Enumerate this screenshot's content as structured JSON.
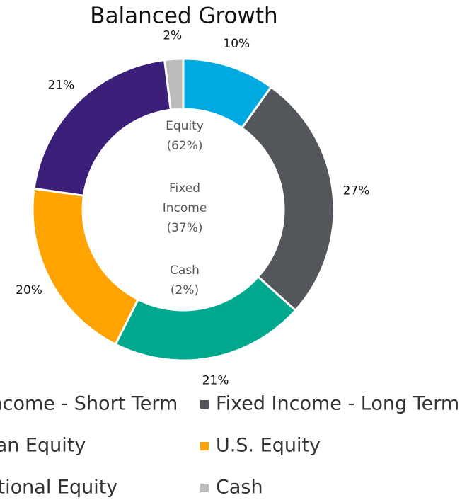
{
  "chart_data": {
    "type": "donut",
    "title": "Balanced Growth",
    "categories": [
      "Fixed Income - Short Term",
      "Fixed Income - Long Term",
      "Canadian Equity",
      "U.S. Equity",
      "International Equity",
      "Cash"
    ],
    "values": [
      10,
      27,
      21,
      20,
      21,
      2
    ],
    "value_labels": [
      "10%",
      "27%",
      "21%",
      "20%",
      "21%",
      "2%"
    ],
    "colors": [
      "#00a9e0",
      "#53565a",
      "#00a88e",
      "#ffa300",
      "#3c1f78",
      "#bbbcbc"
    ],
    "center_labels": [
      "Equity",
      "(62%)",
      "Fixed",
      "Income",
      "(37%)",
      "Cash",
      "(2%)"
    ]
  }
}
